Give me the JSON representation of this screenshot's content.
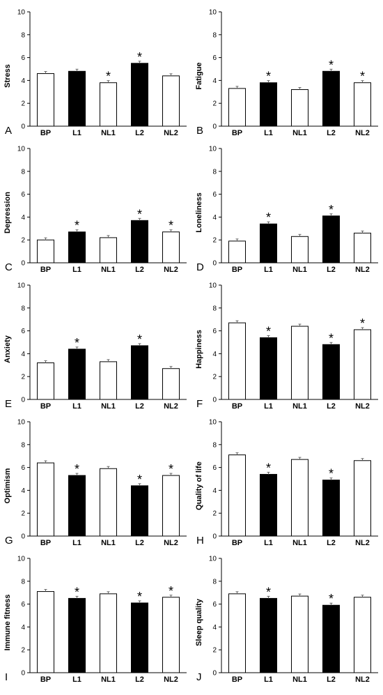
{
  "chart_data": [
    {
      "panel": "A",
      "type": "bar",
      "ylabel": "Stress",
      "ylim": [
        0,
        10
      ],
      "yticks": [
        0,
        2,
        4,
        6,
        8,
        10
      ],
      "categories": [
        "BP",
        "L1",
        "NL1",
        "L2",
        "NL2"
      ],
      "values": [
        4.6,
        4.8,
        3.8,
        5.5,
        4.4
      ],
      "fills": [
        "white",
        "black",
        "white",
        "black",
        "white"
      ],
      "significant": [
        false,
        false,
        true,
        true,
        false
      ]
    },
    {
      "panel": "B",
      "type": "bar",
      "ylabel": "Fatigue",
      "ylim": [
        0,
        10
      ],
      "yticks": [
        0,
        2,
        4,
        6,
        8,
        10
      ],
      "categories": [
        "BP",
        "L1",
        "NL1",
        "L2",
        "NL2"
      ],
      "values": [
        3.3,
        3.8,
        3.2,
        4.8,
        3.8
      ],
      "fills": [
        "white",
        "black",
        "white",
        "black",
        "white"
      ],
      "significant": [
        false,
        true,
        false,
        true,
        true
      ]
    },
    {
      "panel": "C",
      "type": "bar",
      "ylabel": "Depression",
      "ylim": [
        0,
        10
      ],
      "yticks": [
        0,
        2,
        4,
        6,
        8,
        10
      ],
      "categories": [
        "BP",
        "L1",
        "NL1",
        "L2",
        "NL2"
      ],
      "values": [
        2.0,
        2.7,
        2.2,
        3.7,
        2.7
      ],
      "fills": [
        "white",
        "black",
        "white",
        "black",
        "white"
      ],
      "significant": [
        false,
        true,
        false,
        true,
        true
      ]
    },
    {
      "panel": "D",
      "type": "bar",
      "ylabel": "Loneliness",
      "ylim": [
        0,
        10
      ],
      "yticks": [
        0,
        2,
        4,
        6,
        8,
        10
      ],
      "categories": [
        "BP",
        "L1",
        "NL1",
        "L2",
        "NL2"
      ],
      "values": [
        1.9,
        3.4,
        2.3,
        4.1,
        2.6
      ],
      "fills": [
        "white",
        "black",
        "white",
        "black",
        "white"
      ],
      "significant": [
        false,
        true,
        false,
        true,
        false
      ]
    },
    {
      "panel": "E",
      "type": "bar",
      "ylabel": "Anxiety",
      "ylim": [
        0,
        10
      ],
      "yticks": [
        0,
        2,
        4,
        6,
        8,
        10
      ],
      "categories": [
        "BP",
        "L1",
        "NL1",
        "L2",
        "NL2"
      ],
      "values": [
        3.2,
        4.4,
        3.3,
        4.7,
        2.7
      ],
      "fills": [
        "white",
        "black",
        "white",
        "black",
        "white"
      ],
      "significant": [
        false,
        true,
        false,
        true,
        false
      ]
    },
    {
      "panel": "F",
      "type": "bar",
      "ylabel": "Happiness",
      "ylim": [
        0,
        10
      ],
      "yticks": [
        0,
        2,
        4,
        6,
        8,
        10
      ],
      "categories": [
        "BP",
        "L1",
        "NL1",
        "L2",
        "NL2"
      ],
      "values": [
        6.7,
        5.4,
        6.4,
        4.8,
        6.1
      ],
      "fills": [
        "white",
        "black",
        "white",
        "black",
        "white"
      ],
      "significant": [
        false,
        true,
        false,
        true,
        true
      ]
    },
    {
      "panel": "G",
      "type": "bar",
      "ylabel": "Optimism",
      "ylim": [
        0,
        10
      ],
      "yticks": [
        0,
        2,
        4,
        6,
        8,
        10
      ],
      "categories": [
        "BP",
        "L1",
        "NL1",
        "L2",
        "NL2"
      ],
      "values": [
        6.4,
        5.3,
        5.9,
        4.4,
        5.3
      ],
      "fills": [
        "white",
        "black",
        "white",
        "black",
        "white"
      ],
      "significant": [
        false,
        true,
        false,
        true,
        true
      ]
    },
    {
      "panel": "H",
      "type": "bar",
      "ylabel": "Quality of life",
      "ylim": [
        0,
        10
      ],
      "yticks": [
        0,
        2,
        4,
        6,
        8,
        10
      ],
      "categories": [
        "BP",
        "L1",
        "NL1",
        "L2",
        "NL2"
      ],
      "values": [
        7.1,
        5.4,
        6.7,
        4.9,
        6.6
      ],
      "fills": [
        "white",
        "black",
        "white",
        "black",
        "white"
      ],
      "significant": [
        false,
        true,
        false,
        true,
        false
      ]
    },
    {
      "panel": "I",
      "type": "bar",
      "ylabel": "Immune fitness",
      "ylim": [
        0,
        10
      ],
      "yticks": [
        0,
        2,
        4,
        6,
        8,
        10
      ],
      "categories": [
        "BP",
        "L1",
        "NL1",
        "L2",
        "NL2"
      ],
      "values": [
        7.1,
        6.5,
        6.9,
        6.1,
        6.6
      ],
      "fills": [
        "white",
        "black",
        "white",
        "black",
        "white"
      ],
      "significant": [
        false,
        true,
        false,
        true,
        true
      ]
    },
    {
      "panel": "J",
      "type": "bar",
      "ylabel": "Sleep quality",
      "ylim": [
        0,
        10
      ],
      "yticks": [
        0,
        2,
        4,
        6,
        8,
        10
      ],
      "categories": [
        "BP",
        "L1",
        "NL1",
        "L2",
        "NL2"
      ],
      "values": [
        6.9,
        6.5,
        6.7,
        5.9,
        6.6
      ],
      "fills": [
        "white",
        "black",
        "white",
        "black",
        "white"
      ],
      "significant": [
        false,
        true,
        false,
        true,
        false
      ]
    }
  ],
  "significance_marker": "*"
}
